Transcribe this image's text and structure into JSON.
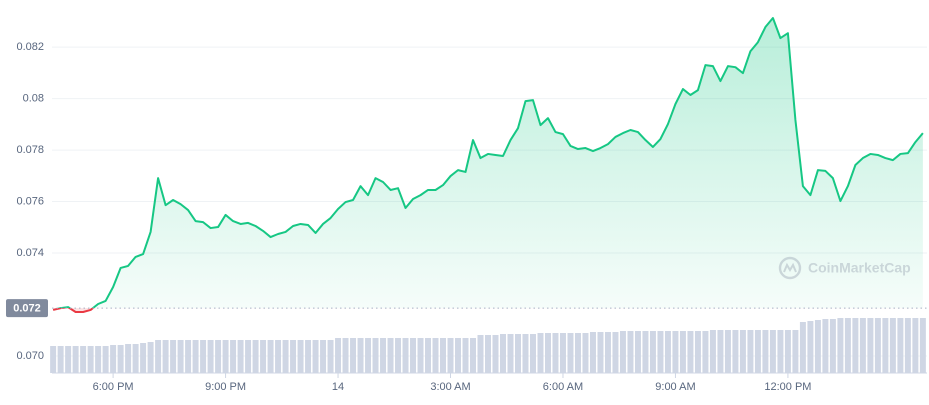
{
  "chart_data": {
    "type": "area",
    "watermark": "CoinMarketCap",
    "x": [
      -1.6,
      -1.4,
      -1.2,
      -1,
      -0.8,
      -0.6,
      -0.4,
      -0.2,
      0,
      0.2,
      0.4,
      0.6,
      0.8,
      1,
      1.2,
      1.4,
      1.6,
      1.8,
      2,
      2.2,
      2.4,
      2.6,
      2.8,
      3,
      3.2,
      3.4,
      3.6,
      3.8,
      4,
      4.2,
      4.4,
      4.6,
      4.8,
      5,
      5.2,
      5.4,
      5.6,
      5.8,
      6,
      6.2,
      6.4,
      6.6,
      6.8,
      7,
      7.2,
      7.4,
      7.6,
      7.8,
      8,
      8.2,
      8.4,
      8.6,
      8.8,
      9,
      9.2,
      9.4,
      9.6,
      9.8,
      10,
      10.2,
      10.4,
      10.6,
      10.8,
      11,
      11.2,
      11.4,
      11.6,
      11.8,
      12,
      12.2,
      12.4,
      12.6,
      12.8,
      13,
      13.2,
      13.4,
      13.6,
      13.8,
      14,
      14.2,
      14.4,
      14.6,
      14.8,
      15,
      15.2,
      15.4,
      15.6,
      15.8,
      16,
      16.2,
      16.4,
      16.6,
      16.8,
      17,
      17.2,
      17.4,
      17.6,
      17.8,
      18,
      18.2,
      18.4,
      18.6,
      18.8,
      19,
      19.2,
      19.4,
      19.6,
      19.8,
      20,
      20.2,
      20.4,
      20.6,
      20.8,
      21,
      21.2,
      21.4,
      21.6
    ],
    "values": [
      0.07179,
      0.07186,
      0.0719,
      0.07171,
      0.07171,
      0.07179,
      0.07202,
      0.07214,
      0.07268,
      0.07342,
      0.0735,
      0.07385,
      0.07396,
      0.07482,
      0.07691,
      0.07586,
      0.07606,
      0.0759,
      0.07567,
      0.07524,
      0.0752,
      0.07497,
      0.07501,
      0.07548,
      0.07524,
      0.07513,
      0.07517,
      0.07505,
      0.07486,
      0.07462,
      0.07474,
      0.07482,
      0.07505,
      0.07513,
      0.07509,
      0.07478,
      0.07513,
      0.07536,
      0.07571,
      0.07598,
      0.07606,
      0.0766,
      0.07625,
      0.07691,
      0.07676,
      0.07645,
      0.07652,
      0.07575,
      0.0761,
      0.07625,
      0.07645,
      0.07645,
      0.07664,
      0.07699,
      0.07722,
      0.07715,
      0.07839,
      0.07769,
      0.07785,
      0.07781,
      0.07777,
      0.07839,
      0.07885,
      0.0799,
      0.07994,
      0.07897,
      0.07924,
      0.0787,
      0.07862,
      0.07816,
      0.07804,
      0.07808,
      0.07796,
      0.07808,
      0.07823,
      0.07851,
      0.07866,
      0.07878,
      0.0787,
      0.07839,
      0.07812,
      0.07843,
      0.07901,
      0.07979,
      0.08037,
      0.08014,
      0.08033,
      0.0813,
      0.08126,
      0.08068,
      0.08126,
      0.08122,
      0.08099,
      0.08184,
      0.08219,
      0.08278,
      0.08313,
      0.08235,
      0.08254,
      0.07917,
      0.0766,
      0.07625,
      0.07722,
      0.07719,
      0.07691,
      0.07602,
      0.0766,
      0.07742,
      0.07769,
      0.07785,
      0.07781,
      0.07769,
      0.07761,
      0.07785,
      0.07788,
      0.07831,
      0.07866
    ],
    "volume": [
      27,
      27,
      27,
      27,
      27,
      27,
      27,
      27,
      28,
      28,
      29,
      29,
      30,
      31,
      33,
      33,
      33,
      33,
      33,
      33,
      33,
      33,
      33,
      33,
      33,
      33,
      33,
      33,
      33,
      33,
      33,
      33,
      33,
      33,
      33,
      33,
      33,
      33,
      35,
      35,
      35,
      35,
      35,
      35,
      35,
      35,
      35,
      35,
      35,
      35,
      35,
      35,
      35,
      35,
      35,
      35,
      35,
      38,
      38,
      38,
      39,
      39,
      39,
      39,
      39,
      40,
      40,
      40,
      40,
      40,
      40,
      40,
      41,
      41,
      41,
      41,
      42,
      42,
      42,
      42,
      42,
      42,
      42,
      42,
      42,
      42,
      42,
      42,
      43,
      43,
      43,
      43,
      43,
      43,
      43,
      43,
      43,
      43,
      43,
      43,
      51,
      52,
      53,
      54,
      54,
      55,
      55,
      55,
      55,
      55,
      55,
      55,
      55,
      55,
      55,
      55,
      55
    ],
    "up_color": "#16c784",
    "down_color": "#ea3943",
    "volume_color": "#cfd6e4",
    "baseline": {
      "value": 0.07186,
      "label": "0.072"
    },
    "xlim": [
      -1.63,
      21.71
    ],
    "ylim": [
      0.06934,
      0.08383
    ],
    "xticks": [
      {
        "value": 0,
        "label": "6:00 PM"
      },
      {
        "value": 3,
        "label": "9:00 PM"
      },
      {
        "value": 6,
        "label": "14"
      },
      {
        "value": 9,
        "label": "3:00 AM"
      },
      {
        "value": 12,
        "label": "6:00 AM"
      },
      {
        "value": 15,
        "label": "9:00 AM"
      },
      {
        "value": 18,
        "label": "12:00 PM"
      }
    ],
    "yticks": [
      {
        "value": 0.07,
        "label": "0.070"
      },
      0.074,
      0.076,
      0.078,
      0.08,
      0.082
    ],
    "grid": true
  }
}
